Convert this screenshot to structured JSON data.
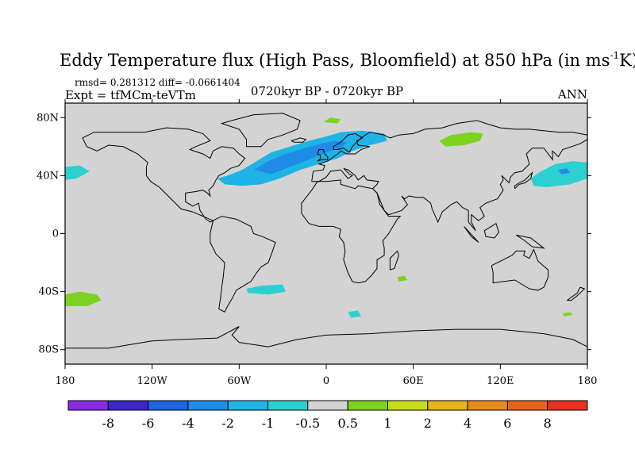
{
  "chart_data": {
    "type": "heatmap",
    "title_main": "Eddy Temperature flux (High Pass, Bloomfield) at 850 hPa (in ms",
    "title_sup": "-1",
    "title_end": "K)",
    "stats": "rmsd= 0.281312  diff= -0.0661404",
    "expt": "Expt = tfMCm-teVTm",
    "period": "0720kyr BP - 0720kyr BP",
    "season": "ANN",
    "xlim": [
      -180,
      180
    ],
    "ylim": [
      -90,
      90
    ],
    "x_ticks": [
      {
        "value": -180,
        "label": "180"
      },
      {
        "value": -120,
        "label": "120W"
      },
      {
        "value": -60,
        "label": "60W"
      },
      {
        "value": 0,
        "label": "0"
      },
      {
        "value": 60,
        "label": "60E"
      },
      {
        "value": 120,
        "label": "120E"
      },
      {
        "value": 180,
        "label": "180"
      }
    ],
    "y_ticks": [
      {
        "value": 80,
        "label": "80N"
      },
      {
        "value": 40,
        "label": "40N"
      },
      {
        "value": 0,
        "label": "0"
      },
      {
        "value": -40,
        "label": "40S"
      },
      {
        "value": -80,
        "label": "80S"
      }
    ],
    "colorbar": {
      "colors": [
        "#8a2be2",
        "#3c28c8",
        "#1e64dc",
        "#1e8ce6",
        "#1eb4e6",
        "#2cd0d0",
        "#d3d3d3",
        "#7ed321",
        "#c8dc1e",
        "#e6b41e",
        "#e68c1e",
        "#e6641e",
        "#e6321e"
      ],
      "labels": [
        "-8",
        "-6",
        "-4",
        "-2",
        "-1",
        "-0.5",
        "0.5",
        "1",
        "2",
        "4",
        "6",
        "8"
      ]
    },
    "background_value_color": "#d3d3d3",
    "anomalies": [
      {
        "region": "north-atlantic",
        "level": -1.5,
        "color": "#1eb4e6",
        "lonlat": [
          [
            -75,
            38
          ],
          [
            -68,
            40
          ],
          [
            -58,
            44
          ],
          [
            -48,
            50
          ],
          [
            -38,
            56
          ],
          [
            -25,
            60
          ],
          [
            -12,
            64
          ],
          [
            0,
            67
          ],
          [
            10,
            70
          ],
          [
            25,
            71
          ],
          [
            40,
            69
          ],
          [
            42,
            64
          ],
          [
            30,
            61
          ],
          [
            18,
            57
          ],
          [
            8,
            52
          ],
          [
            -5,
            48
          ],
          [
            -18,
            44
          ],
          [
            -32,
            38
          ],
          [
            -45,
            34
          ],
          [
            -58,
            33
          ],
          [
            -70,
            34
          ]
        ]
      },
      {
        "region": "north-atlantic-core",
        "level": -2.5,
        "color": "#1e8ce6",
        "lonlat": [
          [
            -50,
            44
          ],
          [
            -40,
            50
          ],
          [
            -28,
            55
          ],
          [
            -15,
            59
          ],
          [
            -4,
            62
          ],
          [
            6,
            64
          ],
          [
            14,
            63
          ],
          [
            10,
            59
          ],
          [
            0,
            56
          ],
          [
            -12,
            51
          ],
          [
            -25,
            46
          ],
          [
            -38,
            41
          ]
        ]
      },
      {
        "region": "north-pacific-east",
        "level": -1,
        "color": "#2cd0d0",
        "lonlat": [
          [
            -180,
            46
          ],
          [
            -170,
            47
          ],
          [
            -163,
            43
          ],
          [
            -172,
            38
          ],
          [
            -180,
            37
          ]
        ]
      },
      {
        "region": "north-pacific-west",
        "level": -1,
        "color": "#2cd0d0",
        "lonlat": [
          [
            141,
            38
          ],
          [
            148,
            43
          ],
          [
            158,
            48
          ],
          [
            170,
            50
          ],
          [
            180,
            49
          ],
          [
            180,
            38
          ],
          [
            168,
            34
          ],
          [
            152,
            32
          ],
          [
            143,
            33
          ]
        ]
      },
      {
        "region": "north-pacific-west-core",
        "level": -2,
        "color": "#1e8ce6",
        "lonlat": [
          [
            160,
            44
          ],
          [
            166,
            45
          ],
          [
            168,
            42
          ],
          [
            162,
            41
          ]
        ]
      },
      {
        "region": "south-atlantic",
        "level": -1,
        "color": "#2cd0d0",
        "lonlat": [
          [
            -55,
            -38
          ],
          [
            -45,
            -36
          ],
          [
            -30,
            -35
          ],
          [
            -28,
            -40
          ],
          [
            -40,
            -42
          ],
          [
            -54,
            -41
          ]
        ]
      },
      {
        "region": "southern-ocean-africa",
        "level": -1,
        "color": "#2cd0d0",
        "lonlat": [
          [
            15,
            -54
          ],
          [
            22,
            -53
          ],
          [
            24,
            -57
          ],
          [
            17,
            -58
          ]
        ]
      },
      {
        "region": "arctic-barents",
        "level": 1,
        "color": "#7ed321",
        "lonlat": [
          [
            -2,
            77
          ],
          [
            3,
            80
          ],
          [
            10,
            79
          ],
          [
            8,
            76
          ]
        ]
      },
      {
        "region": "siberia",
        "level": 1,
        "color": "#7ed321",
        "lonlat": [
          [
            78,
            64
          ],
          [
            86,
            68
          ],
          [
            100,
            70
          ],
          [
            108,
            69
          ],
          [
            106,
            64
          ],
          [
            95,
            61
          ],
          [
            82,
            60
          ]
        ]
      },
      {
        "region": "south-pacific",
        "level": 1,
        "color": "#7ed321",
        "lonlat": [
          [
            -180,
            -42
          ],
          [
            -170,
            -40
          ],
          [
            -158,
            -42
          ],
          [
            -155,
            -46
          ],
          [
            -165,
            -50
          ],
          [
            -180,
            -50
          ]
        ]
      },
      {
        "region": "south-indian",
        "level": 1,
        "color": "#7ed321",
        "lonlat": [
          [
            49,
            -30
          ],
          [
            54,
            -29
          ],
          [
            56,
            -32
          ],
          [
            50,
            -33
          ]
        ]
      },
      {
        "region": "tasman",
        "level": 1,
        "color": "#7ed321",
        "lonlat": [
          [
            163,
            -55
          ],
          [
            168,
            -54
          ],
          [
            170,
            -56
          ],
          [
            164,
            -57
          ]
        ]
      }
    ]
  }
}
